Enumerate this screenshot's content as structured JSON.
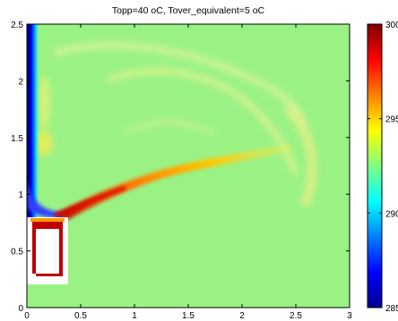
{
  "chart_data": {
    "type": "heatmap",
    "title": "Topp=40 oC,  Tover_equivalent=5 oC",
    "xlabel": "",
    "ylabel": "",
    "xlim": [
      0,
      3
    ],
    "ylim": [
      0,
      2.5
    ],
    "x_ticks": [
      "0",
      "0.5",
      "1",
      "1.5",
      "2",
      "2.5",
      "3"
    ],
    "y_ticks": [
      "0",
      "0.5",
      "1",
      "1.5",
      "2",
      "2.5"
    ],
    "colorbar": {
      "range": [
        285,
        300
      ],
      "ticks": [
        "285",
        "290",
        "295",
        "300"
      ],
      "colormap": "jet"
    },
    "background_value": 293.5,
    "grid": false
  }
}
